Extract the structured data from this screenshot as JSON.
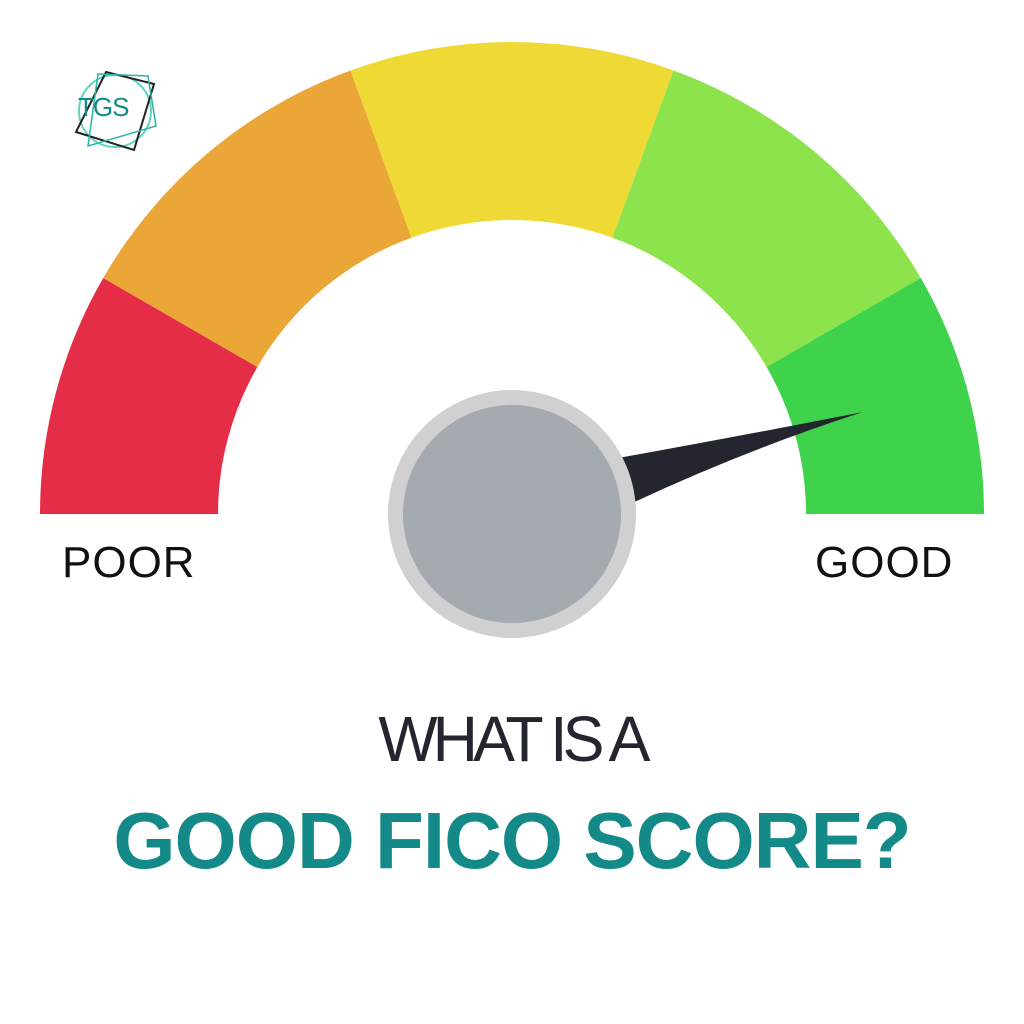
{
  "logo": {
    "text": "TGS"
  },
  "gauge": {
    "segments": [
      {
        "from": 0,
        "to": 30,
        "color": "#e62d48"
      },
      {
        "from": 30,
        "to": 70,
        "color": "#eba638"
      },
      {
        "from": 70,
        "to": 110,
        "color": "#efd935"
      },
      {
        "from": 110,
        "to": 150,
        "color": "#8de34c"
      },
      {
        "from": 150,
        "to": 180,
        "color": "#3fd24b"
      }
    ],
    "level": 0.91,
    "needle_color": "#23262f",
    "hub_color": "#a5a9b0",
    "hub_ring_color": "#d0d0d0",
    "min_label": "POOR",
    "max_label": "GOOD"
  },
  "headline": {
    "line1": "WHAT IS A",
    "line2": "GOOD FICO SCORE?",
    "line2_color": "#138a87"
  }
}
